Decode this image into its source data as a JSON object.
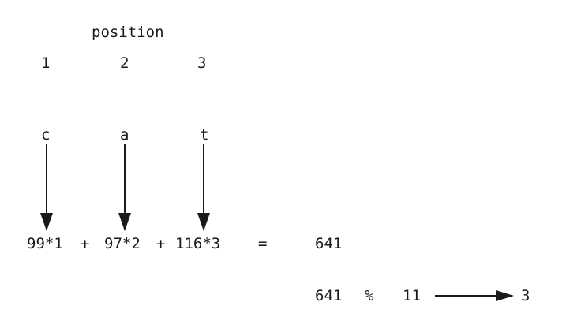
{
  "diagram": {
    "title": "position",
    "positions": [
      "1",
      "2",
      "3"
    ],
    "characters": [
      "c",
      "a",
      "t"
    ],
    "terms": [
      "99*1",
      "97*2",
      "116*3"
    ],
    "plus": "+",
    "equals": "=",
    "sum": "641",
    "modulo": {
      "dividend": "641",
      "operator": "%",
      "divisor": "11",
      "result": "3"
    },
    "arrow_color": "#1a1a1a"
  }
}
